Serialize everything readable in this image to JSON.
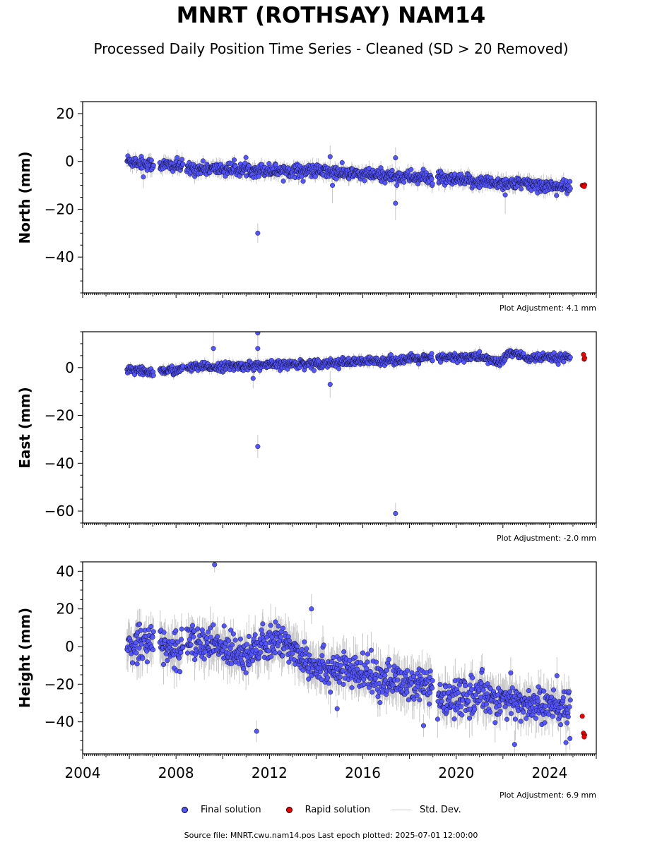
{
  "title": "MNRT (ROTHSAY) NAM14",
  "subtitle": "Processed Daily Position Time Series - Cleaned (SD > 20 Removed)",
  "legend": {
    "final_label": "Final solution",
    "rapid_label": "Rapid solution",
    "std_label": "Std. Dev."
  },
  "footer": "Source file: MNRT.cwu.nam14.pos  Last epoch plotted: 2025-07-01 12:00:00",
  "colors": {
    "final": "#5555ff",
    "rapid": "#ee0000",
    "std": "#c8c8c8"
  },
  "chart_data": [
    {
      "type": "scatter",
      "ylabel": "North (mm)",
      "note": "Plot Adjustment: 4.1 mm",
      "xlim": [
        2004,
        2026
      ],
      "ylim": [
        -55,
        25
      ],
      "yticks": [
        20,
        0,
        -20,
        -40
      ],
      "ytick_labels": [
        "20",
        "0",
        "−20",
        "−40"
      ],
      "xticks": [
        2004,
        2008,
        2012,
        2016,
        2020,
        2024
      ],
      "xtick_labels": [],
      "gaps": [
        [
          2007.05,
          2007.3
        ],
        [
          2008.3,
          2008.45
        ],
        [
          2019.0,
          2019.2
        ]
      ],
      "segments": [
        {
          "x": [
            2005.9,
            2007.0,
            2007.3,
            2008.2,
            2008.45,
            2011.5,
            2014.0,
            2016.0,
            2019.0,
            2019.2,
            2021.0,
            2023.0,
            2024.9
          ],
          "y": [
            0.5,
            -1.5,
            -1.5,
            -2.0,
            -3.0,
            -3.5,
            -4.0,
            -5.5,
            -7.0,
            -7.5,
            -8.5,
            -9.5,
            -11.0
          ],
          "noise": 2.4
        }
      ],
      "outliers": [
        [
          2011.5,
          -30
        ],
        [
          2017.4,
          -17.5
        ],
        [
          2014.6,
          2
        ],
        [
          2017.4,
          1.5
        ],
        [
          2006.6,
          -6.5
        ],
        [
          2014.7,
          -10
        ],
        [
          2022.1,
          -14
        ]
      ],
      "rapid": [
        [
          2025.4,
          -10
        ],
        [
          2025.45,
          -10.3
        ],
        [
          2025.5,
          -9.8
        ],
        [
          2025.48,
          -10.5
        ]
      ]
    },
    {
      "type": "scatter",
      "ylabel": "East (mm)",
      "note": "Plot Adjustment: -2.0 mm",
      "xlim": [
        2004,
        2026
      ],
      "ylim": [
        -65,
        15
      ],
      "yticks": [
        0,
        -20,
        -40,
        -60
      ],
      "ytick_labels": [
        "0",
        "−20",
        "−40",
        "−60"
      ],
      "xticks": [
        2004,
        2008,
        2012,
        2016,
        2020,
        2024
      ],
      "xtick_labels": [],
      "gaps": [
        [
          2007.05,
          2007.3
        ],
        [
          2008.3,
          2008.45
        ],
        [
          2019.0,
          2019.2
        ]
      ],
      "segments": [
        {
          "x": [
            2005.9,
            2007.0,
            2007.3,
            2008.2,
            2008.45,
            2012.0,
            2016.0,
            2019.0,
            2019.2,
            2021.0,
            2021.9,
            2022.3,
            2023.0,
            2024.9
          ],
          "y": [
            -1.0,
            -2.0,
            -1.5,
            -1.0,
            0.0,
            1.0,
            2.5,
            4.0,
            4.0,
            4.5,
            2.0,
            6.5,
            4.0,
            4.0
          ],
          "noise": 1.6
        }
      ],
      "outliers": [
        [
          2011.5,
          -33
        ],
        [
          2017.4,
          -61
        ],
        [
          2011.5,
          14.5
        ],
        [
          2011.5,
          8
        ],
        [
          2009.6,
          8
        ],
        [
          2014.6,
          -7
        ],
        [
          2011.3,
          -4.5
        ]
      ],
      "rapid": [
        [
          2025.45,
          5.5
        ],
        [
          2025.48,
          3.5
        ],
        [
          2025.5,
          4
        ]
      ]
    },
    {
      "type": "scatter",
      "ylabel": "Height (mm)",
      "note": "Plot Adjustment: 6.9 mm",
      "xlim": [
        2004,
        2026
      ],
      "ylim": [
        -57,
        45
      ],
      "yticks": [
        40,
        20,
        0,
        -20,
        -40
      ],
      "ytick_labels": [
        "40",
        "20",
        "0",
        "−20",
        "−40"
      ],
      "xticks": [
        2004,
        2008,
        2012,
        2016,
        2020,
        2024
      ],
      "xtick_labels": [
        "2004",
        "2008",
        "2012",
        "2016",
        "2020",
        "2024"
      ],
      "gaps": [
        [
          2007.05,
          2007.3
        ],
        [
          2008.3,
          2008.45
        ],
        [
          2019.0,
          2019.2
        ]
      ],
      "segments": [
        {
          "x": [
            2005.9,
            2007.0,
            2007.3,
            2008.2,
            2008.45,
            2011.0,
            2012.5,
            2014.0,
            2016.0,
            2019.0,
            2019.2,
            2021.0,
            2022.5,
            2024.9
          ],
          "y": [
            0.0,
            5.0,
            0.0,
            -2.0,
            3.0,
            -3.0,
            3.0,
            -10.0,
            -15.0,
            -22.0,
            -30.0,
            -25.0,
            -30.0,
            -33.0
          ],
          "noise": 8.5
        }
      ],
      "outliers": [
        [
          2009.65,
          43.5
        ],
        [
          2011.45,
          -45
        ],
        [
          2013.8,
          20
        ],
        [
          2022.5,
          -52
        ],
        [
          2018.6,
          -42
        ],
        [
          2014.9,
          -33
        ],
        [
          2024.7,
          -51
        ]
      ],
      "rapid": [
        [
          2025.4,
          -37
        ],
        [
          2025.45,
          -46
        ],
        [
          2025.5,
          -47
        ],
        [
          2025.48,
          -48
        ]
      ]
    }
  ]
}
